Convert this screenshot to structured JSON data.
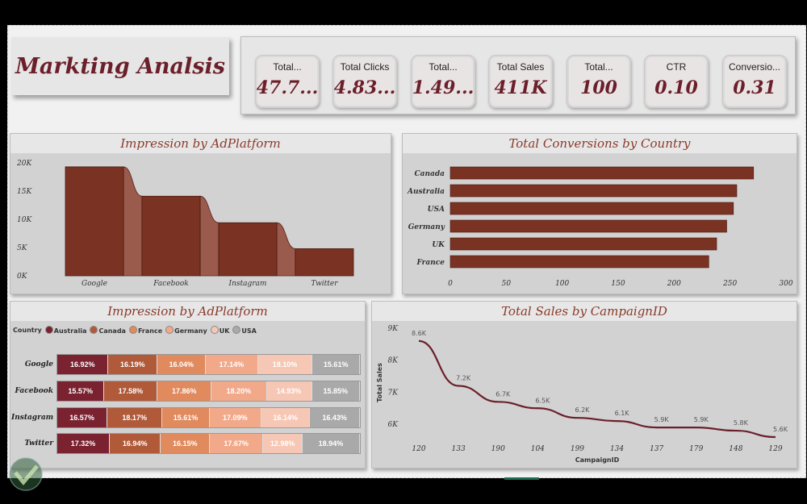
{
  "dashboard": {
    "title": "Markting Analsis",
    "colors": {
      "accent": "#6b1f2a",
      "bar": "#7a3322",
      "panel_bg": "#d2d2d2"
    }
  },
  "kpis": [
    {
      "label": "Total...",
      "value": "47.7..."
    },
    {
      "label": "Total Clicks",
      "value": "4.83..."
    },
    {
      "label": "Total...",
      "value": "1.49..."
    },
    {
      "label": "Total Sales",
      "value": "411K"
    },
    {
      "label": "Total...",
      "value": "100"
    },
    {
      "label": "CTR",
      "value": "0.10"
    },
    {
      "label": "Conversio...",
      "value": "0.31"
    }
  ],
  "chart_data": [
    {
      "type": "bar",
      "title": "Impression by AdPlatform",
      "categories": [
        "Google",
        "Facebook",
        "Instagram",
        "Twitter"
      ],
      "values": [
        19300,
        14100,
        9400,
        4800
      ],
      "yticks": [
        "0K",
        "5K",
        "10K",
        "15K",
        "20K"
      ],
      "ylim": [
        0,
        20000
      ]
    },
    {
      "type": "bar",
      "orientation": "horizontal",
      "title": "Total Conversions by Country",
      "categories": [
        "Canada",
        "Australia",
        "USA",
        "Germany",
        "UK",
        "France"
      ],
      "values": [
        271,
        256,
        253,
        247,
        238,
        231
      ],
      "xticks": [
        "0",
        "50",
        "100",
        "150",
        "200",
        "250",
        "300"
      ],
      "xlim": [
        0,
        300
      ]
    },
    {
      "type": "bar",
      "stacked": "100%",
      "orientation": "horizontal",
      "title": "Impression by AdPlatform",
      "legend_title": "Country",
      "legend": [
        "Australia",
        "Canada",
        "France",
        "Germany",
        "UK",
        "USA"
      ],
      "series_colors": [
        "#7a2230",
        "#b05a3a",
        "#e08a5d",
        "#f2a98a",
        "#f6c7b4",
        "#a9a9a9"
      ],
      "categories": [
        "Google",
        "Facebook",
        "Instagram",
        "Twitter"
      ],
      "rows": [
        {
          "platform": "Google",
          "values": [
            16.92,
            16.19,
            16.04,
            17.14,
            18.1,
            15.61
          ],
          "labels": [
            "16.92%",
            "16.19%",
            "16.04%",
            "17.14%",
            "18.10%",
            "15.61%"
          ]
        },
        {
          "platform": "Facebook",
          "values": [
            15.57,
            17.58,
            17.86,
            18.2,
            14.93,
            15.85
          ],
          "labels": [
            "15.57%",
            "17.58%",
            "17.86%",
            "18.20%",
            "14.93%",
            "15.85%"
          ]
        },
        {
          "platform": "Instagram",
          "values": [
            16.57,
            18.17,
            15.61,
            17.09,
            16.14,
            16.43
          ],
          "labels": [
            "16.57%",
            "18.17%",
            "15.61%",
            "17.09%",
            "16.14%",
            "16.43%"
          ]
        },
        {
          "platform": "Twitter",
          "values": [
            17.32,
            16.94,
            16.15,
            17.67,
            12.98,
            18.94
          ],
          "labels": [
            "17.32%",
            "16.94%",
            "16.15%",
            "17.67%",
            "12.98%",
            "18.94%"
          ]
        }
      ]
    },
    {
      "type": "line",
      "title": "Total Sales by CampaignID",
      "xlabel": "CampaignID",
      "ylabel": "Total Sales",
      "categories": [
        "120",
        "133",
        "190",
        "104",
        "199",
        "134",
        "137",
        "179",
        "148",
        "129"
      ],
      "values": [
        8600,
        7200,
        6700,
        6500,
        6200,
        6100,
        5900,
        5900,
        5800,
        5600
      ],
      "labels": [
        "8.6K",
        "7.2K",
        "6.7K",
        "6.5K",
        "6.2K",
        "6.1K",
        "5.9K",
        "5.9K",
        "5.8K",
        "5.6K"
      ],
      "yticks": [
        "6K",
        "7K",
        "8K",
        "9K"
      ],
      "ylim": [
        5600,
        9000
      ]
    }
  ]
}
